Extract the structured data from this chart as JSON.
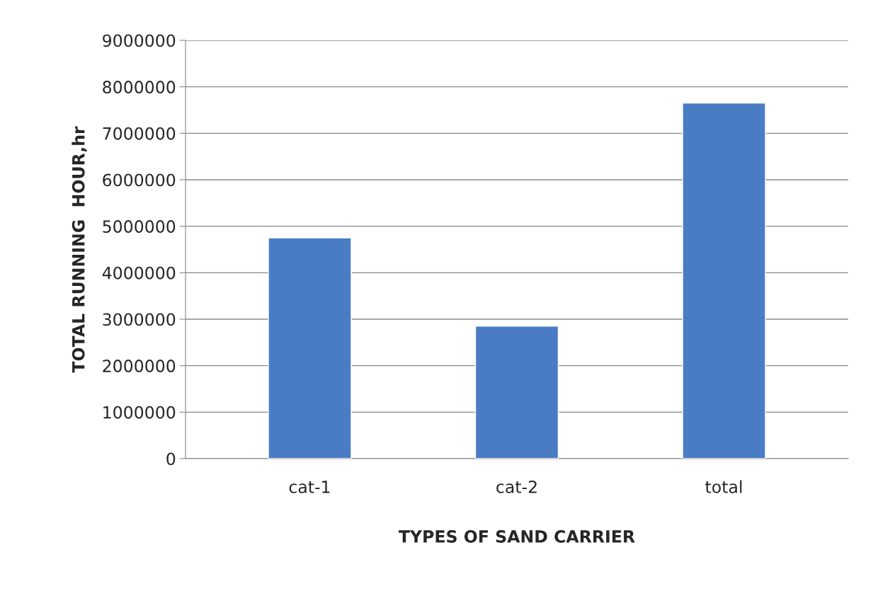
{
  "chart_data": {
    "type": "bar",
    "xlabel": "TYPES OF SAND CARRIER",
    "ylabel": "TOTAL RUNNING  HOUR,hr",
    "categories": [
      "cat-1",
      "cat-2",
      "total"
    ],
    "values": [
      4750000,
      2850000,
      7650000
    ],
    "color": "#4a7cc4",
    "ylim": [
      0,
      9000000
    ],
    "yticks": [
      0,
      1000000,
      2000000,
      3000000,
      4000000,
      5000000,
      6000000,
      7000000,
      8000000,
      9000000
    ],
    "grid": "y",
    "legend": false
  }
}
